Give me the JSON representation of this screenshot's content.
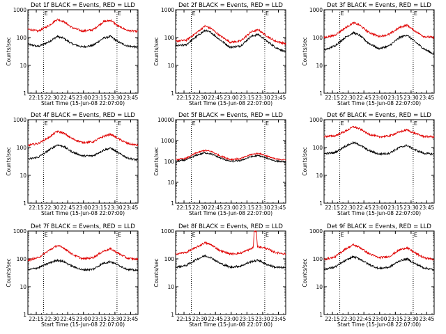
{
  "figure": {
    "background": "#ffffff",
    "axis_color": "#000000",
    "events_color": "#000000",
    "lld_color": "#e00000"
  },
  "chart_data": [
    {
      "type": "line",
      "detector": "1f",
      "title": "Det 1f BLACK = Events, RED = LLD",
      "xlabel": "Start Time (15-Jun-08 22:07:00)",
      "ylabel": "Counts/sec",
      "xlim_minutes": [
        0,
        105
      ],
      "ylim": [
        1,
        1000
      ],
      "yscale": "log",
      "x_ticks": [
        "22:15",
        "22:30",
        "22:45",
        "23:00",
        "23:15",
        "23:30",
        "23:45"
      ],
      "y_ticks": [
        "1",
        "10",
        "100",
        "1000"
      ],
      "marker_lines_minutes": [
        15,
        85
      ],
      "marker_label": "E",
      "series": [
        {
          "name": "Events",
          "color": "#000000",
          "x": [
            0,
            10,
            20,
            28,
            34,
            42,
            52,
            62,
            72,
            79,
            86,
            95,
            105
          ],
          "y": [
            58,
            48,
            70,
            110,
            95,
            60,
            46,
            52,
            95,
            110,
            70,
            50,
            45
          ]
        },
        {
          "name": "LLD",
          "color": "#e00000",
          "x": [
            0,
            10,
            20,
            28,
            34,
            42,
            52,
            62,
            72,
            79,
            86,
            95,
            105
          ],
          "y": [
            200,
            170,
            270,
            450,
            380,
            230,
            170,
            190,
            370,
            420,
            260,
            180,
            165
          ]
        }
      ]
    },
    {
      "type": "line",
      "detector": "2f",
      "title": "Det 2f BLACK = Events, RED = LLD",
      "xlabel": "Start Time (15-Jun-08 22:07:00)",
      "ylabel": "Counts/sec",
      "xlim_minutes": [
        0,
        105
      ],
      "ylim": [
        1,
        1000
      ],
      "yscale": "log",
      "x_ticks": [
        "22:15",
        "22:30",
        "22:45",
        "23:00",
        "23:15",
        "23:30",
        "23:45"
      ],
      "y_ticks": [
        "1",
        "10",
        "100",
        "1000"
      ],
      "marker_lines_minutes": [
        15,
        85
      ],
      "marker_label": "E",
      "series": [
        {
          "name": "Events",
          "color": "#000000",
          "x": [
            0,
            10,
            20,
            28,
            34,
            42,
            52,
            62,
            72,
            79,
            86,
            95,
            105
          ],
          "y": [
            50,
            55,
            110,
            180,
            150,
            85,
            45,
            50,
            110,
            130,
            80,
            45,
            30
          ]
        },
        {
          "name": "LLD",
          "color": "#e00000",
          "x": [
            0,
            10,
            20,
            28,
            34,
            42,
            52,
            62,
            72,
            79,
            86,
            95,
            105
          ],
          "y": [
            75,
            80,
            150,
            260,
            210,
            120,
            68,
            75,
            160,
            190,
            120,
            75,
            60
          ]
        }
      ]
    },
    {
      "type": "line",
      "detector": "3f",
      "title": "Det 3f BLACK = Events, RED = LLD",
      "xlabel": "Start Time (15-Jun-08 22:07:00)",
      "ylabel": "Counts/sec",
      "xlim_minutes": [
        0,
        105
      ],
      "ylim": [
        1,
        1000
      ],
      "yscale": "log",
      "x_ticks": [
        "22:15",
        "22:30",
        "22:45",
        "23:00",
        "23:15",
        "23:30",
        "23:45"
      ],
      "y_ticks": [
        "1",
        "10",
        "100",
        "1000"
      ],
      "marker_lines_minutes": [
        15,
        85
      ],
      "marker_label": "E",
      "series": [
        {
          "name": "Events",
          "color": "#000000",
          "x": [
            0,
            10,
            20,
            28,
            34,
            42,
            52,
            62,
            72,
            79,
            86,
            95,
            105
          ],
          "y": [
            35,
            50,
            100,
            150,
            120,
            65,
            40,
            50,
            100,
            125,
            75,
            40,
            25
          ]
        },
        {
          "name": "LLD",
          "color": "#e00000",
          "x": [
            0,
            10,
            20,
            28,
            34,
            42,
            52,
            62,
            72,
            79,
            86,
            95,
            105
          ],
          "y": [
            100,
            120,
            220,
            340,
            280,
            160,
            110,
            130,
            230,
            280,
            180,
            110,
            100
          ]
        }
      ]
    },
    {
      "type": "line",
      "detector": "4f",
      "title": "Det 4f BLACK = Events, RED = LLD",
      "xlabel": "Start Time (15-Jun-08 22:07:00)",
      "ylabel": "Counts/sec",
      "xlim_minutes": [
        0,
        105
      ],
      "ylim": [
        1,
        1000
      ],
      "yscale": "log",
      "x_ticks": [
        "22:15",
        "22:30",
        "22:45",
        "23:00",
        "23:15",
        "23:30",
        "23:45"
      ],
      "y_ticks": [
        "1",
        "10",
        "100",
        "1000"
      ],
      "marker_lines_minutes": [
        15,
        85
      ],
      "marker_label": "E",
      "series": [
        {
          "name": "Events",
          "color": "#000000",
          "x": [
            0,
            10,
            20,
            28,
            34,
            42,
            52,
            62,
            72,
            79,
            86,
            95,
            105
          ],
          "y": [
            38,
            45,
            80,
            125,
            110,
            70,
            50,
            50,
            80,
            95,
            65,
            42,
            35
          ]
        },
        {
          "name": "LLD",
          "color": "#e00000",
          "x": [
            0,
            10,
            20,
            28,
            34,
            42,
            52,
            62,
            72,
            79,
            86,
            95,
            105
          ],
          "y": [
            120,
            140,
            230,
            380,
            330,
            210,
            150,
            160,
            250,
            300,
            210,
            140,
            120
          ]
        }
      ]
    },
    {
      "type": "line",
      "detector": "5f",
      "title": "Det 5f BLACK = Events, RED = LLD",
      "xlabel": "Start Time (15-Jun-08 22:07:00)",
      "ylabel": "Counts/sec",
      "xlim_minutes": [
        0,
        105
      ],
      "ylim": [
        1,
        10000
      ],
      "yscale": "log",
      "x_ticks": [
        "22:15",
        "22:30",
        "22:45",
        "23:00",
        "23:15",
        "23:30",
        "23:45"
      ],
      "y_ticks": [
        "1",
        "10",
        "100",
        "1000",
        "10000"
      ],
      "marker_lines_minutes": [
        15,
        85
      ],
      "marker_label": "E",
      "series": [
        {
          "name": "Events",
          "color": "#000000",
          "x": [
            0,
            10,
            20,
            28,
            34,
            42,
            52,
            62,
            72,
            79,
            86,
            95,
            105
          ],
          "y": [
            100,
            120,
            200,
            260,
            230,
            150,
            100,
            110,
            170,
            190,
            150,
            105,
            95
          ]
        },
        {
          "name": "LLD",
          "color": "#e00000",
          "x": [
            0,
            10,
            20,
            28,
            34,
            42,
            52,
            62,
            72,
            79,
            86,
            95,
            105
          ],
          "y": [
            120,
            140,
            260,
            340,
            300,
            190,
            125,
            135,
            215,
            245,
            190,
            130,
            120
          ]
        }
      ]
    },
    {
      "type": "line",
      "detector": "6f",
      "title": "Det 6f BLACK = Events, RED = LLD",
      "xlabel": "Start Time (15-Jun-08 22:07:00)",
      "ylabel": "Counts/sec",
      "xlim_minutes": [
        0,
        105
      ],
      "ylim": [
        1,
        1000
      ],
      "yscale": "log",
      "x_ticks": [
        "22:15",
        "22:30",
        "22:45",
        "23:00",
        "23:15",
        "23:30",
        "23:45"
      ],
      "y_ticks": [
        "1",
        "10",
        "100",
        "1000"
      ],
      "marker_lines_minutes": [
        15,
        85
      ],
      "marker_label": "E",
      "series": [
        {
          "name": "Events",
          "color": "#000000",
          "x": [
            0,
            10,
            20,
            28,
            34,
            42,
            52,
            62,
            72,
            79,
            86,
            95,
            105
          ],
          "y": [
            60,
            65,
            110,
            150,
            125,
            80,
            58,
            62,
            100,
            120,
            85,
            62,
            58
          ]
        },
        {
          "name": "LLD",
          "color": "#e00000",
          "x": [
            0,
            10,
            20,
            28,
            34,
            42,
            52,
            62,
            72,
            79,
            86,
            95,
            105
          ],
          "y": [
            250,
            260,
            380,
            560,
            470,
            310,
            240,
            260,
            360,
            430,
            330,
            250,
            240
          ]
        }
      ]
    },
    {
      "type": "line",
      "detector": "7f",
      "title": "Det 7f BLACK = Events, RED = LLD",
      "xlabel": "Start Time (15-Jun-08 22:07:00)",
      "ylabel": "Counts/sec",
      "xlim_minutes": [
        0,
        105
      ],
      "ylim": [
        1,
        1000
      ],
      "yscale": "log",
      "x_ticks": [
        "22:15",
        "22:30",
        "22:45",
        "23:00",
        "23:15",
        "23:30",
        "23:45"
      ],
      "y_ticks": [
        "1",
        "10",
        "100",
        "1000"
      ],
      "marker_lines_minutes": [
        15,
        85
      ],
      "marker_label": "E",
      "series": [
        {
          "name": "Events",
          "color": "#000000",
          "x": [
            0,
            10,
            20,
            28,
            34,
            42,
            52,
            62,
            72,
            79,
            86,
            95,
            105
          ],
          "y": [
            40,
            48,
            70,
            90,
            80,
            55,
            40,
            42,
            70,
            80,
            60,
            42,
            38
          ]
        },
        {
          "name": "LLD",
          "color": "#e00000",
          "x": [
            0,
            10,
            20,
            28,
            34,
            42,
            52,
            62,
            72,
            79,
            86,
            95,
            105
          ],
          "y": [
            90,
            110,
            200,
            300,
            250,
            150,
            100,
            110,
            190,
            230,
            160,
            105,
            95
          ]
        }
      ]
    },
    {
      "type": "line",
      "detector": "8f",
      "title": "Det 8f BLACK = Events, RED = LLD",
      "xlabel": "Start Time (15-Jun-08 22:07:00)",
      "ylabel": "Counts/sec",
      "xlim_minutes": [
        0,
        105
      ],
      "ylim": [
        1,
        1000
      ],
      "yscale": "log",
      "x_ticks": [
        "22:15",
        "22:30",
        "22:45",
        "23:00",
        "23:15",
        "23:30",
        "23:45"
      ],
      "y_ticks": [
        "1",
        "10",
        "100",
        "1000"
      ],
      "marker_lines_minutes": [
        15,
        85
      ],
      "marker_label": "E",
      "series": [
        {
          "name": "Events",
          "color": "#000000",
          "x": [
            0,
            10,
            20,
            28,
            34,
            42,
            52,
            62,
            72,
            76,
            79,
            86,
            95,
            105
          ],
          "y": [
            50,
            58,
            95,
            130,
            110,
            70,
            50,
            55,
            80,
            85,
            90,
            65,
            50,
            48
          ]
        },
        {
          "name": "LLD",
          "color": "#e00000",
          "x": [
            0,
            10,
            20,
            28,
            34,
            42,
            52,
            62,
            74,
            75,
            77,
            78,
            86,
            95,
            105
          ],
          "y": [
            150,
            170,
            260,
            380,
            320,
            200,
            150,
            160,
            250,
            1000,
            1000,
            280,
            240,
            170,
            150
          ]
        }
      ]
    },
    {
      "type": "line",
      "detector": "9f",
      "title": "Det 9f BLACK = Events, RED = LLD",
      "xlabel": "Start Time (15-Jun-08 22:07:00)",
      "ylabel": "Counts/sec",
      "xlim_minutes": [
        0,
        105
      ],
      "ylim": [
        1,
        1000
      ],
      "yscale": "log",
      "x_ticks": [
        "22:15",
        "22:30",
        "22:45",
        "23:00",
        "23:15",
        "23:30",
        "23:45"
      ],
      "y_ticks": [
        "1",
        "10",
        "100",
        "1000"
      ],
      "marker_lines_minutes": [
        15,
        85
      ],
      "marker_label": "E",
      "series": [
        {
          "name": "Events",
          "color": "#000000",
          "x": [
            0,
            10,
            20,
            28,
            34,
            42,
            52,
            62,
            72,
            79,
            86,
            95,
            105
          ],
          "y": [
            42,
            50,
            85,
            120,
            100,
            65,
            45,
            50,
            85,
            100,
            70,
            48,
            40
          ]
        },
        {
          "name": "LLD",
          "color": "#e00000",
          "x": [
            0,
            10,
            20,
            28,
            34,
            42,
            52,
            62,
            72,
            79,
            86,
            95,
            105
          ],
          "y": [
            95,
            115,
            220,
            320,
            260,
            160,
            110,
            120,
            210,
            250,
            170,
            110,
            95
          ]
        }
      ]
    }
  ]
}
